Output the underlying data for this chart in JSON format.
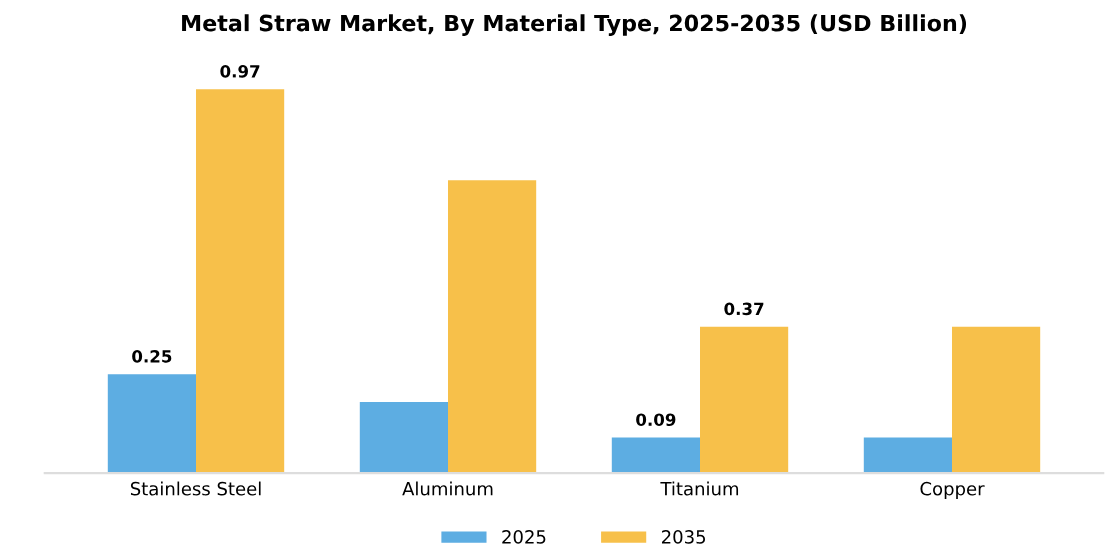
{
  "chart_data": {
    "type": "bar",
    "title": "Metal Straw Market, By Material Type, 2025-2035 (USD Billion)",
    "categories": [
      "Stainless Steel",
      "Aluminum",
      "Titanium",
      "Copper"
    ],
    "series": [
      {
        "name": "2025",
        "color": "#5dade2",
        "values": [
          0.25,
          0.18,
          0.09,
          0.09
        ],
        "value_labels": [
          "0.25",
          null,
          "0.09",
          null
        ]
      },
      {
        "name": "2035",
        "color": "#f7c04a",
        "values": [
          0.97,
          0.74,
          0.37,
          0.37
        ],
        "value_labels": [
          "0.97",
          null,
          "0.37",
          null
        ]
      }
    ],
    "tick_labels": "x",
    "grid": false,
    "legend": "bottom"
  }
}
